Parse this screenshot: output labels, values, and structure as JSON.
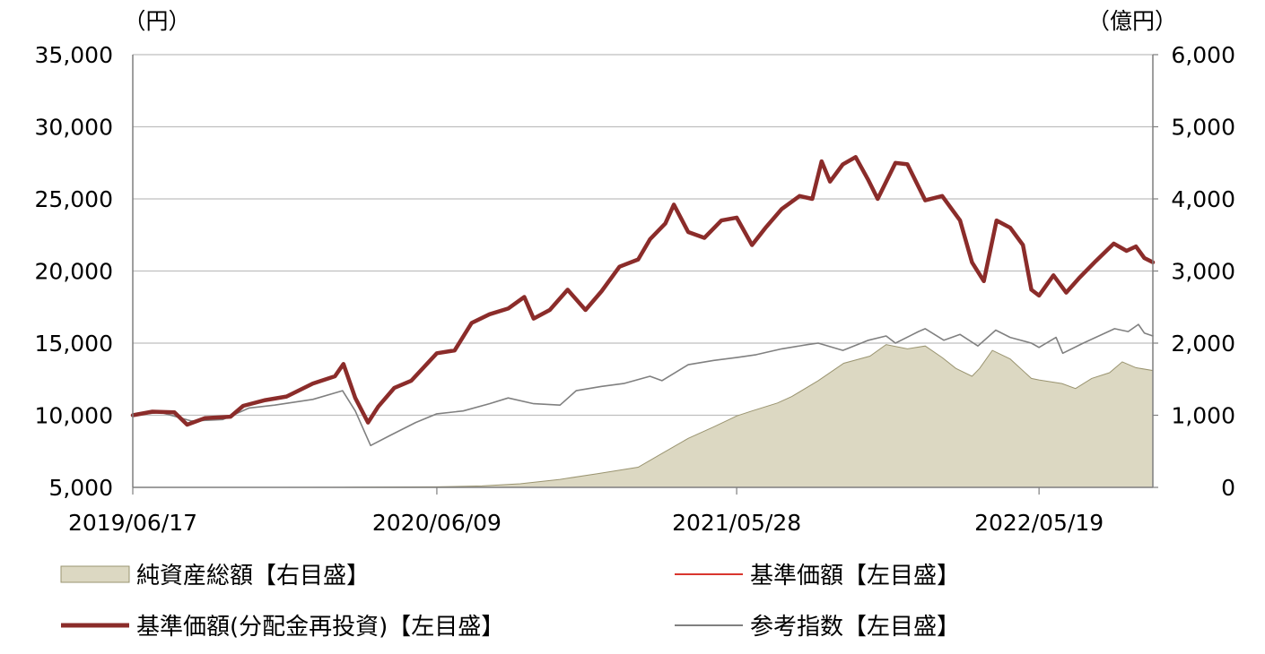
{
  "chart_data": {
    "type": "line",
    "left_axis": {
      "unit": "（円）",
      "ylim": [
        5000,
        35000
      ],
      "ticks": [
        "35,000",
        "30,000",
        "25,000",
        "20,000",
        "15,000",
        "10,000",
        "5,000"
      ],
      "tick_values": [
        35000,
        30000,
        25000,
        20000,
        15000,
        10000,
        5000
      ]
    },
    "right_axis": {
      "unit": "（億円）",
      "ylim": [
        0,
        6000
      ],
      "ticks": [
        "6,000",
        "5,000",
        "4,000",
        "3,000",
        "2,000",
        "1,000",
        "0"
      ],
      "tick_values": [
        6000,
        5000,
        4000,
        3000,
        2000,
        1000,
        0
      ]
    },
    "x_axis": {
      "range": [
        "2019/06/17",
        "2022/09/30"
      ],
      "tick_labels": [
        "2019/06/17",
        "2020/06/09",
        "2021/05/28",
        "2022/05/19"
      ]
    },
    "grid": "horizontal",
    "legend_placement": "bottom",
    "series": [
      {
        "name": "純資産総額【右目盛】",
        "axis": "right",
        "type": "area",
        "color": "#dcd8c2",
        "edge_color": "#9a9470",
        "points": [
          [
            "2019/06/17",
            0
          ],
          [
            "2019/12/01",
            0
          ],
          [
            "2020/03/01",
            3
          ],
          [
            "2020/06/09",
            8
          ],
          [
            "2020/08/01",
            20
          ],
          [
            "2020/09/15",
            50
          ],
          [
            "2020/11/01",
            110
          ],
          [
            "2020/12/15",
            190
          ],
          [
            "2021/02/01",
            280
          ],
          [
            "2021/03/01",
            470
          ],
          [
            "2021/04/01",
            680
          ],
          [
            "2021/05/01",
            840
          ],
          [
            "2021/05/28",
            990
          ],
          [
            "2021/06/15",
            1060
          ],
          [
            "2021/07/15",
            1170
          ],
          [
            "2021/08/01",
            1260
          ],
          [
            "2021/09/01",
            1480
          ],
          [
            "2021/10/01",
            1720
          ],
          [
            "2021/11/01",
            1820
          ],
          [
            "2021/11/20",
            1980
          ],
          [
            "2021/12/15",
            1920
          ],
          [
            "2022/01/05",
            1960
          ],
          [
            "2022/01/25",
            1800
          ],
          [
            "2022/02/10",
            1650
          ],
          [
            "2022/03/01",
            1540
          ],
          [
            "2022/03/10",
            1650
          ],
          [
            "2022/03/25",
            1900
          ],
          [
            "2022/04/15",
            1780
          ],
          [
            "2022/05/10",
            1510
          ],
          [
            "2022/05/19",
            1490
          ],
          [
            "2022/06/15",
            1440
          ],
          [
            "2022/07/01",
            1370
          ],
          [
            "2022/07/20",
            1510
          ],
          [
            "2022/08/10",
            1590
          ],
          [
            "2022/08/25",
            1740
          ],
          [
            "2022/09/10",
            1660
          ],
          [
            "2022/09/30",
            1620
          ]
        ]
      },
      {
        "name": "基準価額【左目盛】",
        "axis": "left",
        "type": "line",
        "color": "#d9362e",
        "points": [
          [
            "2019/06/17",
            10000
          ],
          [
            "2019/07/10",
            10250
          ],
          [
            "2019/08/05",
            10200
          ],
          [
            "2019/08/20",
            9350
          ],
          [
            "2019/09/10",
            9800
          ],
          [
            "2019/10/10",
            9900
          ],
          [
            "2019/10/25",
            10650
          ],
          [
            "2019/11/20",
            11050
          ],
          [
            "2019/12/15",
            11300
          ],
          [
            "2020/01/15",
            12200
          ],
          [
            "2020/02/10",
            12700
          ],
          [
            "2020/02/20",
            13550
          ],
          [
            "2020/03/05",
            11200
          ],
          [
            "2020/03/20",
            9500
          ],
          [
            "2020/04/01",
            10600
          ],
          [
            "2020/04/20",
            11900
          ],
          [
            "2020/05/10",
            12400
          ],
          [
            "2020/06/09",
            14300
          ],
          [
            "2020/06/30",
            14500
          ],
          [
            "2020/07/20",
            16400
          ],
          [
            "2020/08/10",
            17000
          ],
          [
            "2020/09/01",
            17400
          ],
          [
            "2020/09/20",
            18200
          ],
          [
            "2020/10/01",
            16700
          ],
          [
            "2020/10/20",
            17300
          ],
          [
            "2020/11/10",
            18700
          ],
          [
            "2020/12/01",
            17300
          ],
          [
            "2020/12/20",
            18600
          ],
          [
            "2021/01/10",
            20300
          ],
          [
            "2021/02/01",
            20800
          ],
          [
            "2021/02/15",
            22200
          ],
          [
            "2021/03/05",
            23300
          ],
          [
            "2021/03/15",
            24600
          ],
          [
            "2021/04/01",
            22700
          ],
          [
            "2021/04/20",
            22300
          ],
          [
            "2021/05/10",
            23500
          ],
          [
            "2021/05/28",
            23700
          ],
          [
            "2021/06/15",
            21800
          ],
          [
            "2021/07/01",
            23000
          ],
          [
            "2021/07/20",
            24300
          ],
          [
            "2021/08/10",
            25200
          ],
          [
            "2021/08/25",
            25000
          ],
          [
            "2021/09/05",
            27600
          ],
          [
            "2021/09/15",
            26200
          ],
          [
            "2021/09/30",
            27400
          ],
          [
            "2021/10/15",
            27900
          ],
          [
            "2021/10/30",
            26300
          ],
          [
            "2021/11/10",
            25000
          ],
          [
            "2021/12/01",
            27500
          ],
          [
            "2021/12/15",
            27400
          ],
          [
            "2022/01/05",
            24900
          ],
          [
            "2022/01/25",
            25200
          ],
          [
            "2022/02/15",
            23500
          ],
          [
            "2022/03/01",
            20600
          ],
          [
            "2022/03/15",
            19300
          ],
          [
            "2022/03/30",
            23500
          ],
          [
            "2022/04/15",
            23000
          ],
          [
            "2022/04/30",
            21800
          ],
          [
            "2022/05/10",
            18700
          ],
          [
            "2022/05/19",
            18300
          ],
          [
            "2022/06/05",
            19700
          ],
          [
            "2022/06/20",
            18500
          ],
          [
            "2022/07/05",
            19500
          ],
          [
            "2022/07/25",
            20700
          ],
          [
            "2022/08/15",
            21900
          ],
          [
            "2022/08/30",
            21400
          ],
          [
            "2022/09/10",
            21700
          ],
          [
            "2022/09/20",
            20900
          ],
          [
            "2022/09/30",
            20600
          ]
        ]
      },
      {
        "name": "基準価額(分配金再投資)【左目盛】",
        "axis": "left",
        "type": "line",
        "color": "#8b2c2a",
        "points": [
          [
            "2019/06/17",
            10000
          ],
          [
            "2019/07/10",
            10250
          ],
          [
            "2019/08/05",
            10200
          ],
          [
            "2019/08/20",
            9350
          ],
          [
            "2019/09/10",
            9800
          ],
          [
            "2019/10/10",
            9900
          ],
          [
            "2019/10/25",
            10650
          ],
          [
            "2019/11/20",
            11050
          ],
          [
            "2019/12/15",
            11300
          ],
          [
            "2020/01/15",
            12200
          ],
          [
            "2020/02/10",
            12700
          ],
          [
            "2020/02/20",
            13550
          ],
          [
            "2020/03/05",
            11200
          ],
          [
            "2020/03/20",
            9500
          ],
          [
            "2020/04/01",
            10600
          ],
          [
            "2020/04/20",
            11900
          ],
          [
            "2020/05/10",
            12400
          ],
          [
            "2020/06/09",
            14300
          ],
          [
            "2020/06/30",
            14500
          ],
          [
            "2020/07/20",
            16400
          ],
          [
            "2020/08/10",
            17000
          ],
          [
            "2020/09/01",
            17400
          ],
          [
            "2020/09/20",
            18200
          ],
          [
            "2020/10/01",
            16700
          ],
          [
            "2020/10/20",
            17300
          ],
          [
            "2020/11/10",
            18700
          ],
          [
            "2020/12/01",
            17300
          ],
          [
            "2020/12/20",
            18600
          ],
          [
            "2021/01/10",
            20300
          ],
          [
            "2021/02/01",
            20800
          ],
          [
            "2021/02/15",
            22200
          ],
          [
            "2021/03/05",
            23300
          ],
          [
            "2021/03/15",
            24600
          ],
          [
            "2021/04/01",
            22700
          ],
          [
            "2021/04/20",
            22300
          ],
          [
            "2021/05/10",
            23500
          ],
          [
            "2021/05/28",
            23700
          ],
          [
            "2021/06/15",
            21800
          ],
          [
            "2021/07/01",
            23000
          ],
          [
            "2021/07/20",
            24300
          ],
          [
            "2021/08/10",
            25200
          ],
          [
            "2021/08/25",
            25000
          ],
          [
            "2021/09/05",
            27600
          ],
          [
            "2021/09/15",
            26200
          ],
          [
            "2021/09/30",
            27400
          ],
          [
            "2021/10/15",
            27900
          ],
          [
            "2021/10/30",
            26300
          ],
          [
            "2021/11/10",
            25000
          ],
          [
            "2021/12/01",
            27500
          ],
          [
            "2021/12/15",
            27400
          ],
          [
            "2022/01/05",
            24900
          ],
          [
            "2022/01/25",
            25200
          ],
          [
            "2022/02/15",
            23500
          ],
          [
            "2022/03/01",
            20600
          ],
          [
            "2022/03/15",
            19300
          ],
          [
            "2022/03/30",
            23500
          ],
          [
            "2022/04/15",
            23000
          ],
          [
            "2022/04/30",
            21800
          ],
          [
            "2022/05/10",
            18700
          ],
          [
            "2022/05/19",
            18300
          ],
          [
            "2022/06/05",
            19700
          ],
          [
            "2022/06/20",
            18500
          ],
          [
            "2022/07/05",
            19500
          ],
          [
            "2022/07/25",
            20700
          ],
          [
            "2022/08/15",
            21900
          ],
          [
            "2022/08/30",
            21400
          ],
          [
            "2022/09/10",
            21700
          ],
          [
            "2022/09/20",
            20900
          ],
          [
            "2022/09/30",
            20600
          ]
        ]
      },
      {
        "name": "参考指数【左目盛】",
        "axis": "left",
        "type": "line",
        "color": "#808080",
        "points": [
          [
            "2019/06/17",
            10000
          ],
          [
            "2019/07/20",
            10200
          ],
          [
            "2019/08/25",
            9600
          ],
          [
            "2019/10/01",
            9700
          ],
          [
            "2019/11/01",
            10500
          ],
          [
            "2019/12/01",
            10700
          ],
          [
            "2020/01/15",
            11100
          ],
          [
            "2020/02/19",
            11700
          ],
          [
            "2020/03/05",
            10300
          ],
          [
            "2020/03/23",
            7900
          ],
          [
            "2020/04/15",
            8600
          ],
          [
            "2020/05/15",
            9500
          ],
          [
            "2020/06/09",
            10100
          ],
          [
            "2020/07/10",
            10300
          ],
          [
            "2020/08/10",
            10800
          ],
          [
            "2020/09/01",
            11200
          ],
          [
            "2020/10/01",
            10800
          ],
          [
            "2020/11/01",
            10700
          ],
          [
            "2020/11/20",
            11700
          ],
          [
            "2020/12/20",
            12000
          ],
          [
            "2021/01/15",
            12200
          ],
          [
            "2021/02/15",
            12700
          ],
          [
            "2021/03/01",
            12400
          ],
          [
            "2021/04/01",
            13500
          ],
          [
            "2021/05/01",
            13800
          ],
          [
            "2021/05/28",
            14000
          ],
          [
            "2021/06/20",
            14200
          ],
          [
            "2021/07/20",
            14600
          ],
          [
            "2021/08/20",
            14900
          ],
          [
            "2021/09/01",
            15000
          ],
          [
            "2021/09/30",
            14500
          ],
          [
            "2021/10/30",
            15200
          ],
          [
            "2021/11/20",
            15500
          ],
          [
            "2021/12/01",
            15000
          ],
          [
            "2021/12/28",
            15800
          ],
          [
            "2022/01/05",
            16000
          ],
          [
            "2022/01/27",
            15200
          ],
          [
            "2022/02/15",
            15600
          ],
          [
            "2022/03/08",
            14800
          ],
          [
            "2022/03/29",
            15900
          ],
          [
            "2022/04/15",
            15400
          ],
          [
            "2022/05/10",
            15000
          ],
          [
            "2022/05/19",
            14700
          ],
          [
            "2022/06/08",
            15400
          ],
          [
            "2022/06/16",
            14300
          ],
          [
            "2022/07/10",
            15000
          ],
          [
            "2022/08/16",
            16000
          ],
          [
            "2022/09/01",
            15800
          ],
          [
            "2022/09/13",
            16300
          ],
          [
            "2022/09/20",
            15700
          ],
          [
            "2022/09/30",
            15500
          ]
        ]
      }
    ],
    "legend": [
      {
        "label": "純資産総額【右目盛】",
        "swatch": "area",
        "color": "#dcd8c2"
      },
      {
        "label": "基準価額【左目盛】",
        "swatch": "thin-line",
        "color": "#d9362e"
      },
      {
        "label": "基準価額(分配金再投資)【左目盛】",
        "swatch": "thick-line",
        "color": "#8b2c2a"
      },
      {
        "label": "参考指数【左目盛】",
        "swatch": "thin-line",
        "color": "#808080"
      }
    ]
  }
}
